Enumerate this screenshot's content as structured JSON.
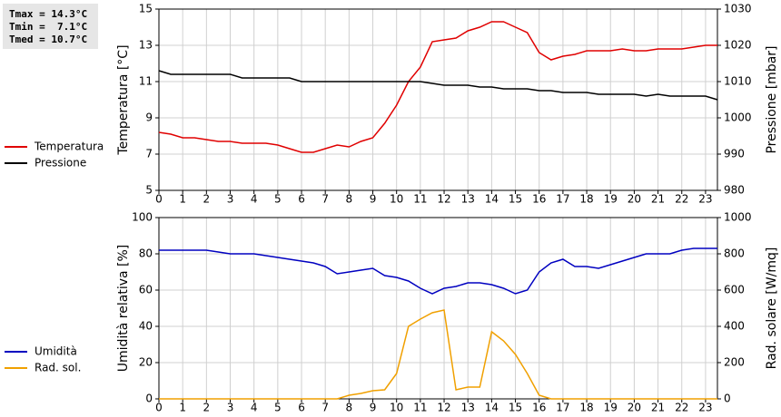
{
  "chart_data": [
    {
      "type": "line",
      "annotations": [
        "Tmax = 14.3°C",
        "Tmin =  7.1°C",
        "Tmed = 10.7°C"
      ],
      "y_label": "Temperatura [°C]",
      "y2_label": "Pressione [mbar]",
      "x": [
        0,
        0.5,
        1,
        1.5,
        2,
        2.5,
        3,
        3.5,
        4,
        4.5,
        5,
        5.5,
        6,
        6.5,
        7,
        7.5,
        8,
        8.5,
        9,
        9.5,
        10,
        10.5,
        11,
        11.5,
        12,
        12.5,
        13,
        13.5,
        14,
        14.5,
        15,
        15.5,
        16,
        16.5,
        17,
        17.5,
        18,
        18.5,
        19,
        19.5,
        20,
        20.5,
        21,
        21.5,
        22,
        22.5,
        23,
        23.5
      ],
      "xlim": [
        0,
        23.5
      ],
      "xticks": [
        0,
        1,
        2,
        3,
        4,
        5,
        6,
        7,
        8,
        9,
        10,
        11,
        12,
        13,
        14,
        15,
        16,
        17,
        18,
        19,
        20,
        21,
        22,
        23
      ],
      "ylim": [
        5,
        15
      ],
      "yticks": [
        5,
        7,
        9,
        11,
        13,
        15
      ],
      "y2lim": [
        980,
        1030
      ],
      "y2ticks": [
        980,
        990,
        1000,
        1010,
        1020,
        1030
      ],
      "grid": true,
      "legend": "left",
      "series": [
        {
          "name": "Temperatura",
          "color": "#e00000",
          "values": [
            8.2,
            8.1,
            7.9,
            7.9,
            7.8,
            7.7,
            7.7,
            7.6,
            7.6,
            7.6,
            7.5,
            7.3,
            7.1,
            7.1,
            7.3,
            7.5,
            7.4,
            7.7,
            7.9,
            8.7,
            9.7,
            11.0,
            11.8,
            13.2,
            13.3,
            13.4,
            13.8,
            14.0,
            14.3,
            14.3,
            14.0,
            13.7,
            12.6,
            12.2,
            12.4,
            12.5,
            12.7,
            12.7,
            12.7,
            12.8,
            12.7,
            12.7,
            12.8,
            12.8,
            12.8,
            12.9,
            13.0,
            13.0
          ]
        },
        {
          "name": "Pressione",
          "color": "#000000",
          "axis": "y2",
          "values": [
            1013,
            1012,
            1012,
            1012,
            1012,
            1012,
            1012,
            1011,
            1011,
            1011,
            1011,
            1011,
            1010,
            1010,
            1010,
            1010,
            1010,
            1010,
            1010,
            1010,
            1010,
            1010,
            1010,
            1009.5,
            1009,
            1009,
            1009,
            1008.5,
            1008.5,
            1008,
            1008,
            1008,
            1007.5,
            1007.5,
            1007,
            1007,
            1007,
            1006.5,
            1006.5,
            1006.5,
            1006.5,
            1006,
            1006.5,
            1006,
            1006,
            1006,
            1006,
            1005
          ]
        }
      ]
    },
    {
      "type": "line",
      "y_label": "Umidità relativa [%]",
      "y2_label": "Rad. solare [W/mq]",
      "x": [
        0,
        0.5,
        1,
        1.5,
        2,
        2.5,
        3,
        3.5,
        4,
        4.5,
        5,
        5.5,
        6,
        6.5,
        7,
        7.5,
        8,
        8.5,
        9,
        9.5,
        10,
        10.5,
        11,
        11.5,
        12,
        12.5,
        13,
        13.5,
        14,
        14.5,
        15,
        15.5,
        16,
        16.5,
        17,
        17.5,
        18,
        18.5,
        19,
        19.5,
        20,
        20.5,
        21,
        21.5,
        22,
        22.5,
        23,
        23.5
      ],
      "xlim": [
        0,
        23.5
      ],
      "xticks": [
        0,
        1,
        2,
        3,
        4,
        5,
        6,
        7,
        8,
        9,
        10,
        11,
        12,
        13,
        14,
        15,
        16,
        17,
        18,
        19,
        20,
        21,
        22,
        23
      ],
      "ylim": [
        0,
        100
      ],
      "yticks": [
        0,
        20,
        40,
        60,
        80,
        100
      ],
      "y2lim": [
        0,
        1000
      ],
      "y2ticks": [
        0,
        200,
        400,
        600,
        800,
        1000
      ],
      "grid": true,
      "legend": "left",
      "series": [
        {
          "name": "Umidità",
          "color": "#0000c0",
          "values": [
            82,
            82,
            82,
            82,
            82,
            81,
            80,
            80,
            80,
            79,
            78,
            77,
            76,
            75,
            73,
            69,
            70,
            71,
            72,
            68,
            67,
            65,
            61,
            58,
            61,
            62,
            64,
            64,
            63,
            61,
            58,
            60,
            70,
            75,
            77,
            73,
            73,
            72,
            74,
            76,
            78,
            80,
            80,
            80,
            82,
            83,
            83,
            83
          ]
        },
        {
          "name": "Rad. sol.",
          "color": "#f0a000",
          "axis": "y2",
          "values": [
            0,
            0,
            0,
            0,
            0,
            0,
            0,
            0,
            0,
            0,
            0,
            0,
            0,
            0,
            0,
            0,
            20,
            30,
            45,
            50,
            140,
            400,
            440,
            475,
            490,
            50,
            65,
            65,
            370,
            320,
            245,
            140,
            20,
            0,
            0,
            0,
            0,
            0,
            0,
            0,
            0,
            0,
            0,
            0,
            0,
            0,
            0,
            0
          ]
        }
      ]
    }
  ]
}
